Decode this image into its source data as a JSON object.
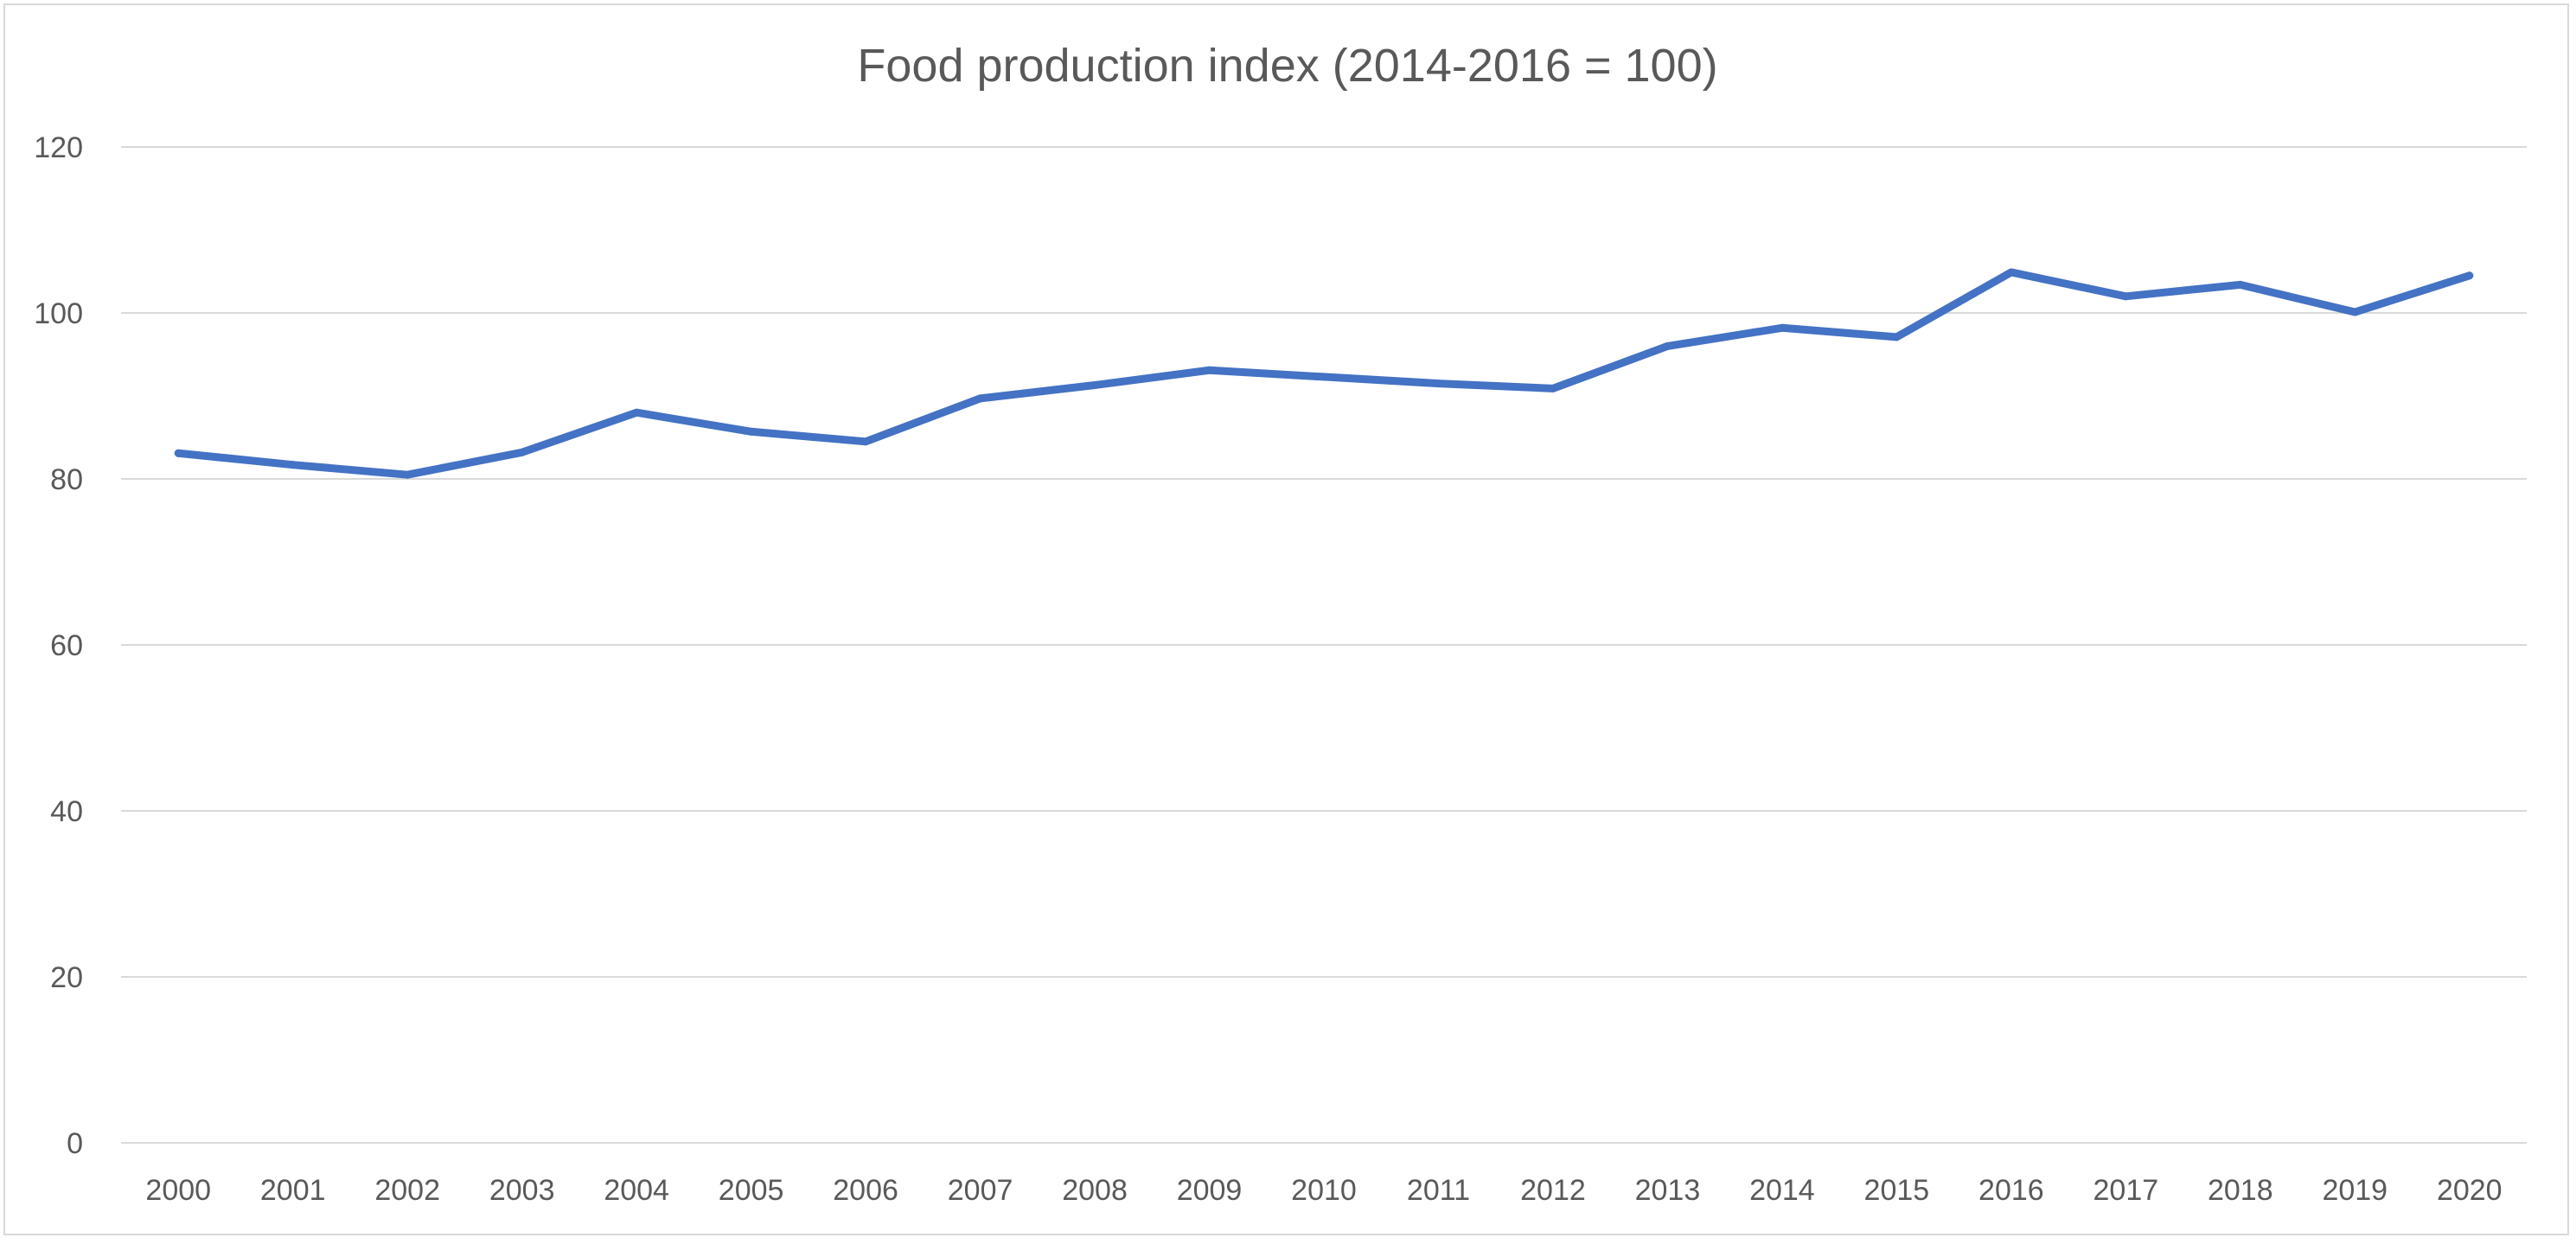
{
  "chart_data": {
    "type": "line",
    "title": "Food production index (2014-2016 = 100)",
    "xlabel": "",
    "ylabel": "",
    "categories": [
      "2000",
      "2001",
      "2002",
      "2003",
      "2004",
      "2005",
      "2006",
      "2007",
      "2008",
      "2009",
      "2010",
      "2011",
      "2012",
      "2013",
      "2014",
      "2015",
      "2016",
      "2017",
      "2018",
      "2019",
      "2020"
    ],
    "series": [
      {
        "values": [
          83.1,
          81.7,
          80.5,
          83.2,
          88.0,
          85.7,
          84.5,
          89.7,
          91.3,
          93.1,
          92.3,
          91.5,
          90.9,
          96.0,
          98.2,
          97.1,
          104.9,
          102.0,
          103.4,
          100.1,
          104.5
        ],
        "color": "#4472c4"
      }
    ],
    "ylim": [
      0,
      120
    ],
    "yticks": [
      0,
      20,
      40,
      60,
      80,
      100,
      120
    ],
    "grid": true,
    "legend": "none",
    "colors": {
      "gridline": "#d9d9d9",
      "text": "#595959",
      "border": "#d9d9d9"
    }
  }
}
